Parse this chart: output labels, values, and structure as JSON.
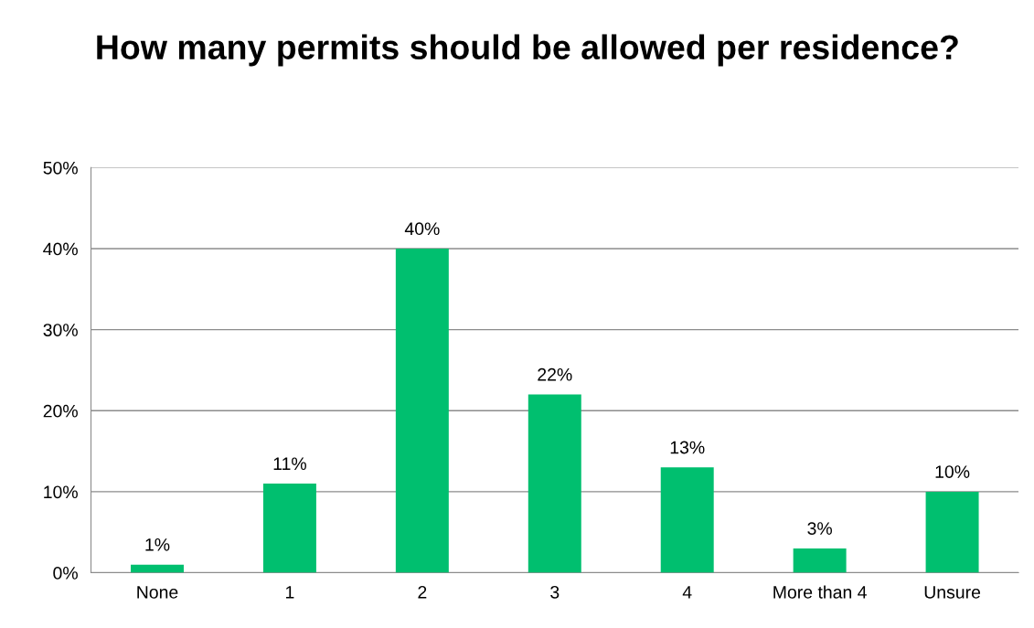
{
  "chart_data": {
    "type": "bar",
    "title": "How many permits should be allowed per residence?",
    "categories": [
      "None",
      "1",
      "2",
      "3",
      "4",
      "More than 4",
      "Unsure"
    ],
    "values": [
      1,
      11,
      40,
      22,
      13,
      3,
      10
    ],
    "value_labels": [
      "1%",
      "11%",
      "40%",
      "22%",
      "13%",
      "3%",
      "10%"
    ],
    "color": "#00bf6f",
    "ylim": [
      0,
      50
    ],
    "yticks": [
      {
        "value": 0,
        "label": "0%"
      },
      {
        "value": 10,
        "label": "10%"
      },
      {
        "value": 20,
        "label": "20%"
      },
      {
        "value": 30,
        "label": "30%"
      },
      {
        "value": 40,
        "label": "40%"
      },
      {
        "value": 50,
        "label": "50%"
      }
    ],
    "grid": "y",
    "legend": false
  }
}
